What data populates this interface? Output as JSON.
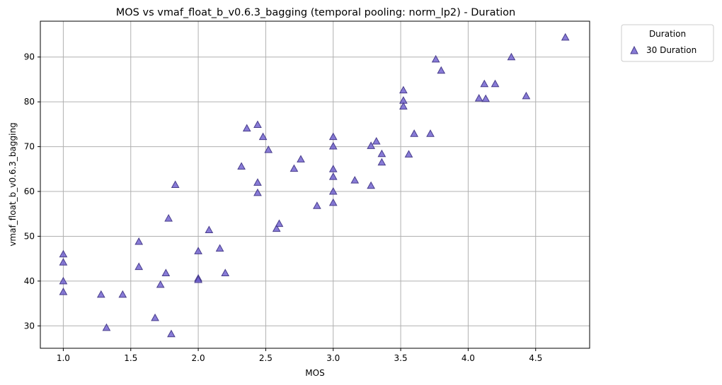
{
  "chart_data": {
    "type": "scatter",
    "title": "MOS vs vmaf_float_b_v0.6.3_bagging (temporal pooling: norm_lp2) - Duration",
    "xlabel": "MOS",
    "ylabel": "vmaf_float_b_v0.6.3_bagging",
    "xlim": [
      0.83,
      4.9
    ],
    "ylim": [
      25,
      98
    ],
    "xticks": [
      "1.0",
      "1.5",
      "2.0",
      "2.5",
      "3.0",
      "3.5",
      "4.0",
      "4.5"
    ],
    "xtick_values": [
      1.0,
      1.5,
      2.0,
      2.5,
      3.0,
      3.5,
      4.0,
      4.5
    ],
    "yticks": [
      "30",
      "40",
      "50",
      "60",
      "70",
      "80",
      "90"
    ],
    "ytick_values": [
      30,
      40,
      50,
      60,
      70,
      80,
      90
    ],
    "grid": true,
    "legend": {
      "title": "Duration",
      "placement": "outside-top-right",
      "entries": [
        "30 Duration"
      ]
    },
    "marker": "triangle",
    "color": "#6a5acd",
    "series": [
      {
        "name": "30 Duration",
        "points": [
          [
            1.0,
            46.0
          ],
          [
            1.0,
            44.2
          ],
          [
            1.0,
            40.0
          ],
          [
            1.0,
            37.6
          ],
          [
            1.28,
            37.0
          ],
          [
            1.32,
            29.6
          ],
          [
            1.44,
            37.0
          ],
          [
            1.56,
            48.8
          ],
          [
            1.56,
            43.2
          ],
          [
            1.68,
            31.8
          ],
          [
            1.72,
            39.2
          ],
          [
            1.76,
            41.8
          ],
          [
            1.78,
            54.0
          ],
          [
            1.8,
            28.2
          ],
          [
            1.83,
            61.5
          ],
          [
            2.0,
            46.7
          ],
          [
            2.0,
            40.6
          ],
          [
            2.0,
            40.3
          ],
          [
            2.08,
            51.4
          ],
          [
            2.16,
            47.3
          ],
          [
            2.2,
            41.8
          ],
          [
            2.32,
            65.6
          ],
          [
            2.36,
            74.1
          ],
          [
            2.44,
            74.9
          ],
          [
            2.44,
            62.0
          ],
          [
            2.44,
            59.7
          ],
          [
            2.48,
            72.2
          ],
          [
            2.52,
            69.3
          ],
          [
            2.58,
            51.7
          ],
          [
            2.6,
            52.8
          ],
          [
            2.71,
            65.1
          ],
          [
            2.76,
            67.2
          ],
          [
            2.88,
            56.8
          ],
          [
            3.0,
            72.2
          ],
          [
            3.0,
            70.1
          ],
          [
            3.0,
            65.0
          ],
          [
            3.0,
            63.3
          ],
          [
            3.0,
            60.0
          ],
          [
            3.0,
            57.5
          ],
          [
            3.16,
            62.5
          ],
          [
            3.28,
            70.2
          ],
          [
            3.28,
            61.3
          ],
          [
            3.32,
            71.2
          ],
          [
            3.36,
            68.4
          ],
          [
            3.36,
            66.5
          ],
          [
            3.52,
            82.6
          ],
          [
            3.52,
            80.3
          ],
          [
            3.52,
            79.0
          ],
          [
            3.56,
            68.3
          ],
          [
            3.6,
            72.9
          ],
          [
            3.72,
            72.9
          ],
          [
            3.76,
            89.5
          ],
          [
            3.8,
            87.0
          ],
          [
            4.08,
            80.8
          ],
          [
            4.12,
            84.0
          ],
          [
            4.13,
            80.7
          ],
          [
            4.2,
            84.0
          ],
          [
            4.32,
            90.0
          ],
          [
            4.43,
            81.3
          ],
          [
            4.72,
            94.4
          ]
        ]
      }
    ]
  }
}
